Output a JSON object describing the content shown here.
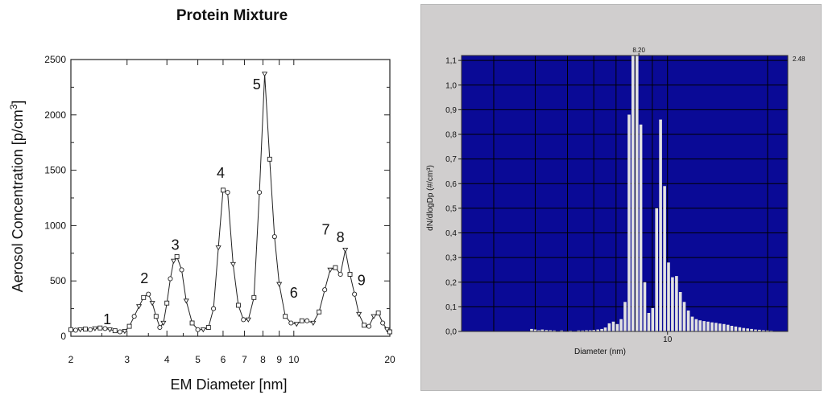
{
  "chart_data": [
    {
      "type": "line",
      "title": "Protein Mixture",
      "xlabel": "EM Diameter [nm]",
      "ylabel": "Aerosol Concentration [p/cm³]",
      "ylabel_main": "Aerosol Concentration [p/cm",
      "ylabel_sup": "3",
      "ylabel_end": "]",
      "x_scale": "log",
      "xlim": [
        2,
        20
      ],
      "ylim": [
        0,
        2500
      ],
      "x_ticks": [
        2,
        3,
        4,
        5,
        6,
        7,
        8,
        9,
        10,
        20
      ],
      "x_tick_labels": [
        "2",
        "3",
        "4",
        "5",
        "6",
        "7",
        "8",
        "9",
        "10",
        "20"
      ],
      "y_ticks": [
        0,
        500,
        1000,
        1500,
        2000,
        2500
      ],
      "y_tick_labels": [
        "0",
        "500",
        "1000",
        "1500",
        "2000",
        "2500"
      ],
      "grid": false,
      "series": [
        {
          "x": [
            2.0,
            2.07,
            2.14,
            2.22,
            2.3,
            2.38,
            2.47,
            2.56,
            2.65,
            2.75,
            2.85,
            2.95,
            3.05,
            3.16,
            3.27,
            3.38,
            3.5,
            3.6,
            3.7,
            3.8,
            3.9,
            4.0,
            4.1,
            4.2,
            4.3,
            4.45,
            4.6,
            4.8,
            5.0,
            5.2,
            5.4,
            5.6,
            5.8,
            6.0,
            6.2,
            6.45,
            6.7,
            6.95,
            7.2,
            7.5,
            7.8,
            8.1,
            8.4,
            8.7,
            9.0,
            9.4,
            9.8,
            10.2,
            10.6,
            11.0,
            11.5,
            12.0,
            12.5,
            13.0,
            13.5,
            14.0,
            14.5,
            15.0,
            15.5,
            16.0,
            16.6,
            17.2,
            17.8,
            18.4,
            19.0,
            19.6,
            20.0
          ],
          "y": [
            60,
            55,
            60,
            65,
            60,
            70,
            75,
            70,
            60,
            50,
            40,
            45,
            90,
            180,
            270,
            350,
            380,
            300,
            180,
            80,
            120,
            300,
            520,
            680,
            720,
            600,
            320,
            120,
            60,
            60,
            80,
            250,
            800,
            1320,
            1300,
            650,
            280,
            150,
            150,
            350,
            1300,
            2370,
            1600,
            900,
            470,
            180,
            120,
            110,
            140,
            140,
            120,
            220,
            420,
            600,
            620,
            560,
            780,
            560,
            380,
            200,
            100,
            90,
            180,
            210,
            120,
            60,
            40
          ]
        }
      ],
      "annotations": [
        {
          "text": "1",
          "x": 2.6,
          "y": 110
        },
        {
          "text": "2",
          "x": 3.4,
          "y": 480
        },
        {
          "text": "3",
          "x": 4.25,
          "y": 780
        },
        {
          "text": "4",
          "x": 5.9,
          "y": 1430
        },
        {
          "text": "5",
          "x": 7.65,
          "y": 2230
        },
        {
          "text": "6",
          "x": 10.0,
          "y": 350
        },
        {
          "text": "7",
          "x": 12.6,
          "y": 920
        },
        {
          "text": "8",
          "x": 14.0,
          "y": 850
        },
        {
          "text": "9",
          "x": 16.3,
          "y": 460
        }
      ]
    },
    {
      "type": "bar",
      "title": "",
      "xlabel": "Diameter (nm)",
      "ylabel": "dN/dlogDp (#/cm³)",
      "x_scale": "log",
      "xlim": [
        2.4,
        23
      ],
      "ylim": [
        0,
        1.12
      ],
      "x_ticks": [
        10
      ],
      "x_tick_labels": [
        "10"
      ],
      "y_ticks": [
        0.0,
        0.1,
        0.2,
        0.3,
        0.4,
        0.5,
        0.6,
        0.7,
        0.8,
        0.9,
        1.0,
        1.1
      ],
      "y_tick_labels": [
        "0,0",
        "0,1",
        "0,2",
        "0,3",
        "0,4",
        "0,5",
        "0,6",
        "0,7",
        "0,8",
        "0,9",
        "1,0",
        "1,1"
      ],
      "grid": true,
      "colors": {
        "plot_bg": "#0a0a96",
        "grid": "#000000",
        "bar": "#e2e2e2",
        "panel_bg": "#d0cece"
      },
      "marker_label": "8.20",
      "marker_x": 8.2,
      "max_label": "2.48",
      "series": [
        {
          "x": [
            3.9,
            4.0,
            4.1,
            4.2,
            4.32,
            4.44,
            4.56,
            4.8,
            5.1,
            5.4,
            5.55,
            5.7,
            5.85,
            6.0,
            6.17,
            6.34,
            6.5,
            6.68,
            6.87,
            7.06,
            7.25,
            7.45,
            7.66,
            7.87,
            8.09,
            8.31,
            8.54,
            8.78,
            9.02,
            9.27,
            9.53,
            9.8,
            10.07,
            10.35,
            10.64,
            10.93,
            11.23,
            11.55,
            11.87,
            12.2,
            12.53,
            12.88,
            13.24,
            13.61,
            13.99,
            14.38,
            14.78,
            15.19,
            15.61,
            16.04,
            16.49,
            16.95,
            17.42,
            17.9,
            18.4,
            18.91,
            19.44,
            19.98,
            20.53
          ],
          "y": [
            0.01,
            0.008,
            0.005,
            0.008,
            0.006,
            0.005,
            0.004,
            0.004,
            0.003,
            0.004,
            0.004,
            0.005,
            0.005,
            0.006,
            0.008,
            0.01,
            0.016,
            0.033,
            0.04,
            0.03,
            0.05,
            0.12,
            0.88,
            1.12,
            1.12,
            0.84,
            0.2,
            0.075,
            0.095,
            0.5,
            0.86,
            0.59,
            0.28,
            0.22,
            0.225,
            0.16,
            0.12,
            0.085,
            0.06,
            0.05,
            0.045,
            0.042,
            0.04,
            0.037,
            0.035,
            0.032,
            0.03,
            0.027,
            0.023,
            0.02,
            0.017,
            0.014,
            0.012,
            0.01,
            0.008,
            0.007,
            0.005,
            0.004,
            0.003
          ]
        }
      ]
    }
  ]
}
